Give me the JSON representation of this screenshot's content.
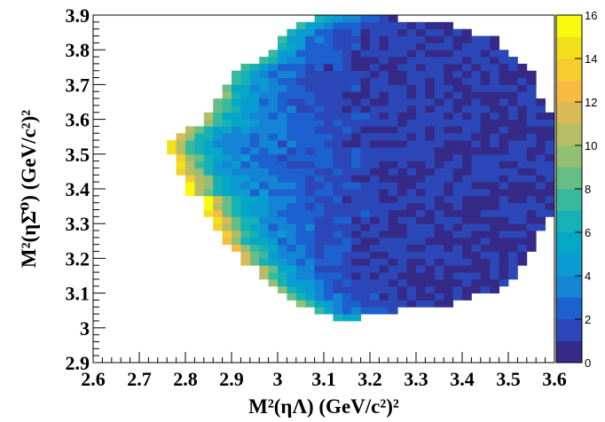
{
  "chart_data": {
    "type": "heatmap",
    "xlabel": "M²(ηΛ) (GeV/c²)²",
    "ylabel": "M²(ηΣ̄⁰) (GeV/c²)²",
    "xlim": [
      2.6,
      3.6
    ],
    "ylim": [
      2.9,
      3.9
    ],
    "zlim": [
      0,
      16
    ],
    "x_ticks": [
      "2.6",
      "2.7",
      "2.8",
      "2.9",
      "3",
      "3.1",
      "3.2",
      "3.3",
      "3.4",
      "3.5",
      "3.6"
    ],
    "y_ticks": [
      "2.9",
      "3",
      "3.1",
      "3.2",
      "3.3",
      "3.4",
      "3.5",
      "3.6",
      "3.7",
      "3.8",
      "3.9"
    ],
    "z_ticks": [
      "0",
      "2",
      "4",
      "6",
      "8",
      "10",
      "12",
      "14",
      "16"
    ],
    "colorbar": "right",
    "grid": false,
    "bins": 50,
    "colormap": [
      "#352a87",
      "#2c47b7",
      "#1d60cf",
      "#1485d4",
      "#0a9bd2",
      "#06a7c6",
      "#15b1b4",
      "#38b99e",
      "#65be86",
      "#92bf73",
      "#b7bd64",
      "#d9ba56",
      "#f8ba43",
      "#f6cd2e",
      "#f3e01c",
      "#f9fb0e"
    ],
    "density_peak": 16,
    "density_peak_at": [
      2.81,
      3.36
    ],
    "region": [
      [
        3.03,
        3.95,
        3.12,
        3.18
      ],
      [
        3.04,
        3.92,
        3.08,
        3.26
      ],
      [
        3.06,
        3.88,
        3.05,
        3.38
      ],
      [
        3.08,
        3.86,
        3.02,
        3.42
      ],
      [
        3.1,
        3.83,
        3.0,
        3.48
      ],
      [
        3.12,
        3.8,
        2.98,
        3.5
      ],
      [
        3.14,
        3.78,
        2.96,
        3.52
      ],
      [
        3.18,
        3.76,
        2.92,
        3.54
      ],
      [
        3.22,
        3.74,
        2.9,
        3.56
      ],
      [
        3.25,
        3.7,
        2.88,
        3.57
      ],
      [
        3.28,
        3.66,
        2.86,
        3.58
      ],
      [
        3.32,
        3.62,
        2.84,
        3.6
      ],
      [
        3.38,
        3.58,
        2.8,
        3.6
      ],
      [
        3.44,
        3.56,
        2.78,
        3.6
      ],
      [
        3.5,
        3.53,
        2.77,
        3.6
      ]
    ]
  }
}
